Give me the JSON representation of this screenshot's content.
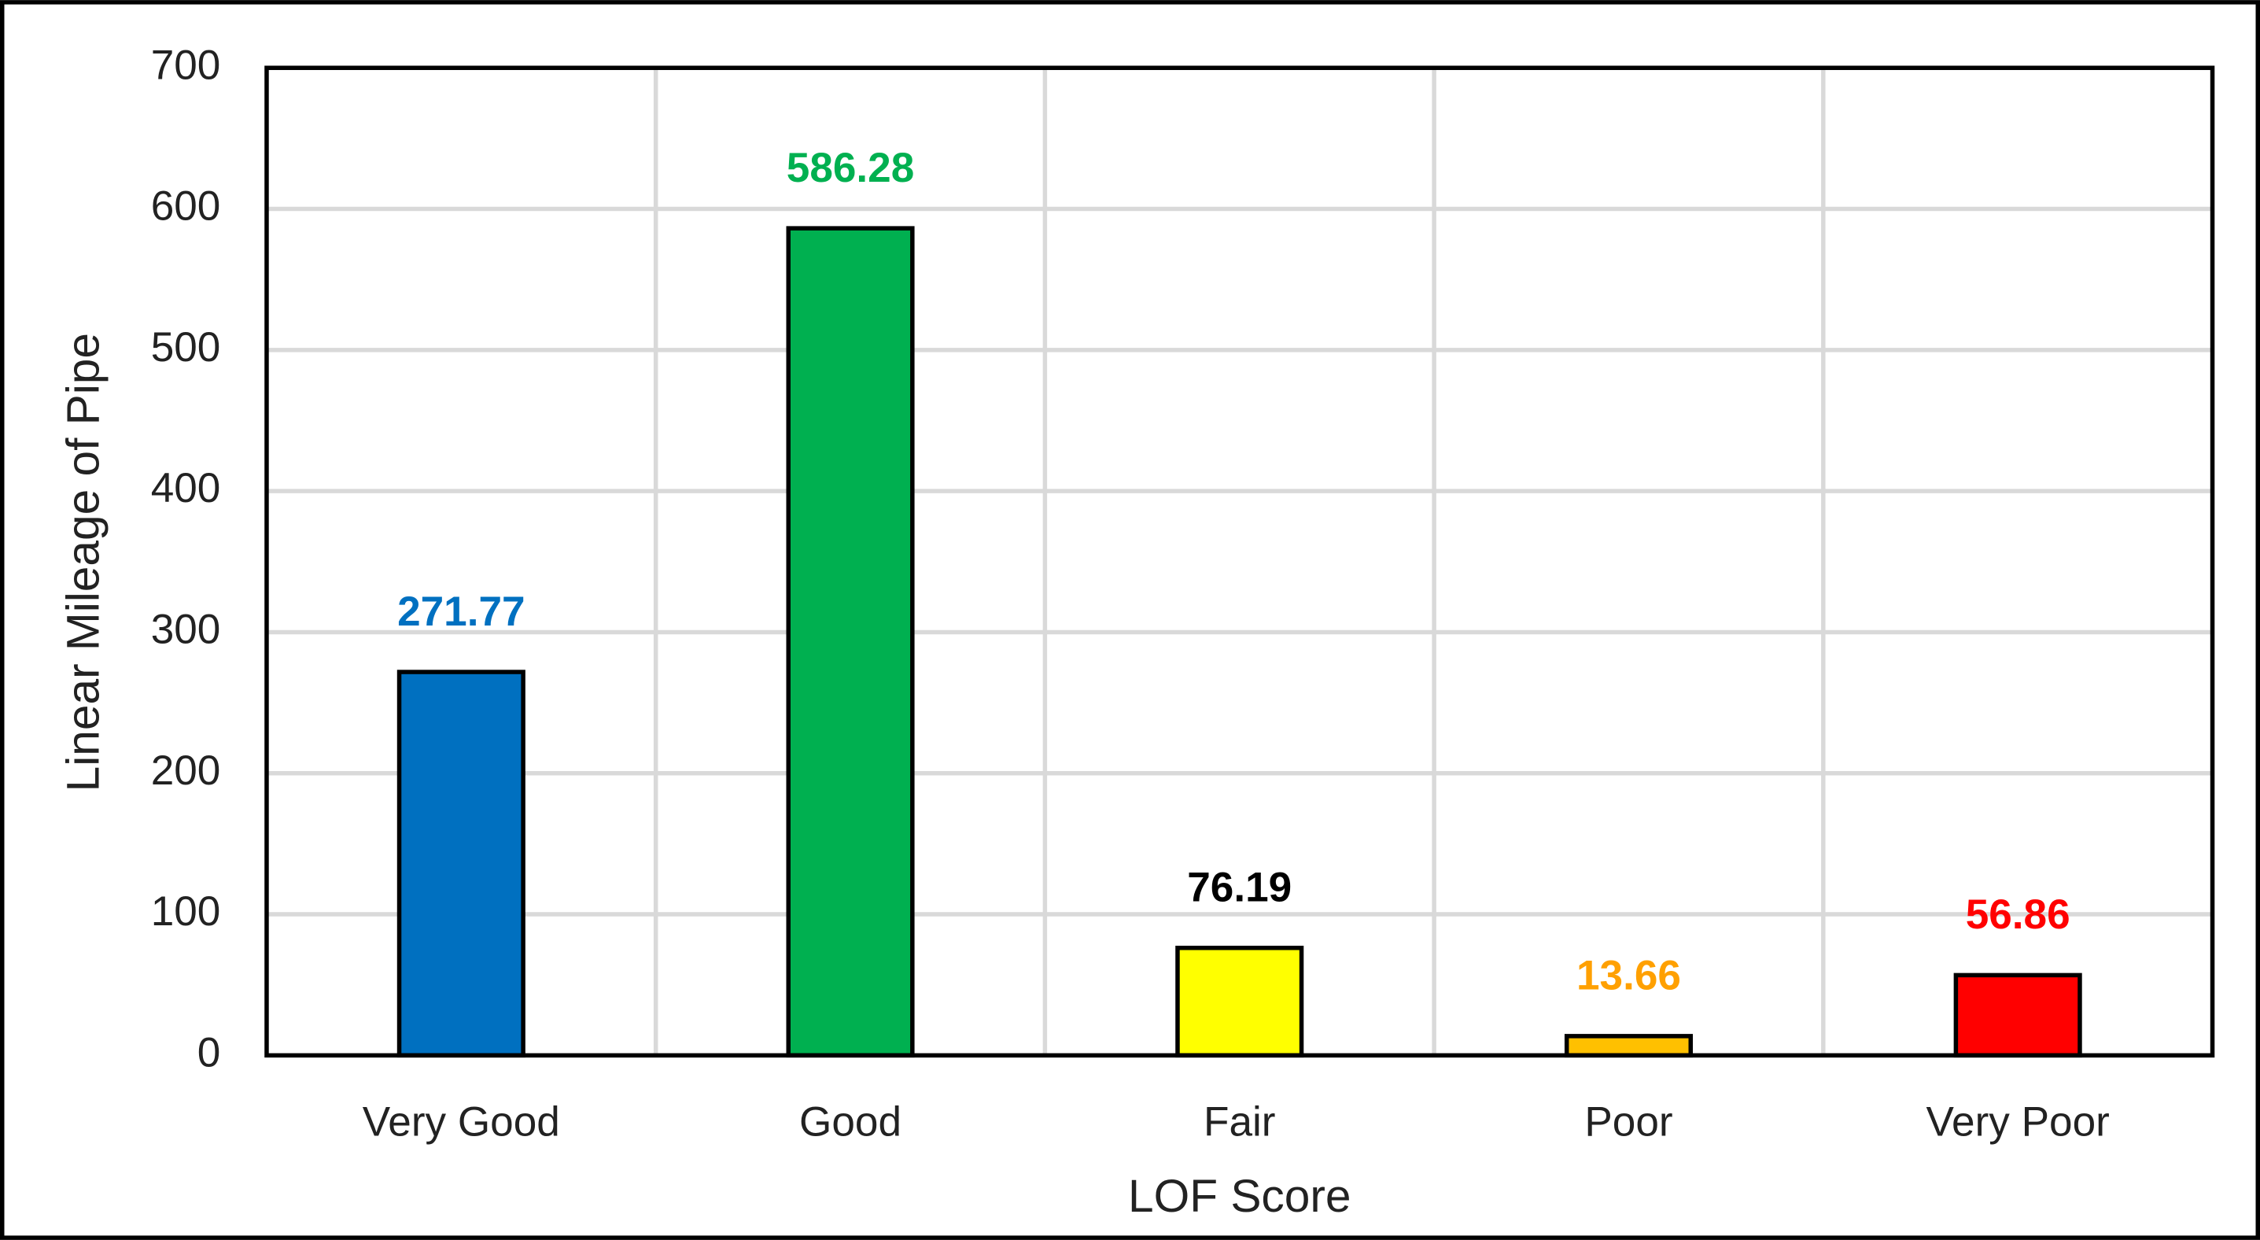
{
  "chart_data": {
    "type": "bar",
    "x_label": "LOF Score",
    "y_label": "Linear Mileage of Pipe",
    "categories": [
      "Very Good",
      "Good",
      "Fair",
      "Poor",
      "Very Poor"
    ],
    "values": [
      271.77,
      586.28,
      76.19,
      13.66,
      56.86
    ],
    "colors": [
      "#0070c0",
      "#00b050",
      "#ffff00",
      "#ffc000",
      "#ff0000"
    ],
    "label_colors": [
      "#0070c0",
      "#00b050",
      "#000000",
      "#ffa000",
      "#ff0000"
    ],
    "ylim": [
      0,
      700
    ],
    "yticks": [
      0,
      100,
      200,
      300,
      400,
      500,
      600,
      700
    ],
    "grid": true
  }
}
